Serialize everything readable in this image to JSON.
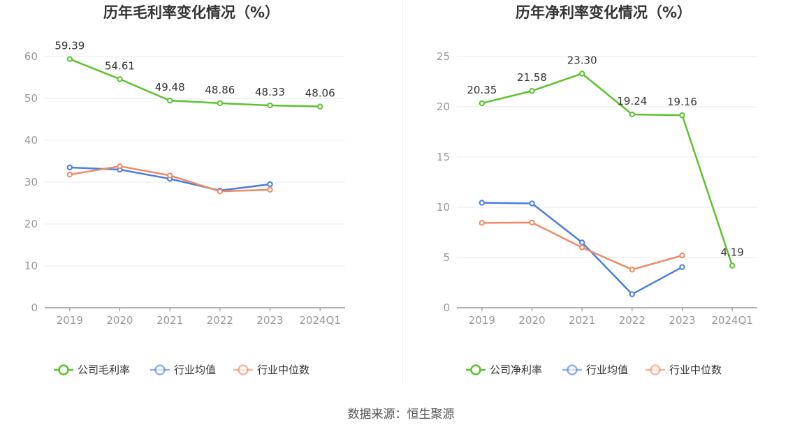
{
  "colors": {
    "company": "#5bc22e",
    "avg": "#4a7ee0",
    "median": "#f08a64",
    "grid": "#e6e9f2",
    "axis_text": "#999999",
    "label_text": "#333333",
    "title_text": "#333333"
  },
  "source": "数据来源：恒生聚源",
  "chart_data": [
    {
      "type": "line",
      "title": "历年毛利率变化情况（%）",
      "categories": [
        "2019",
        "2020",
        "2021",
        "2022",
        "2023",
        "2024Q1"
      ],
      "ylim": [
        0,
        60
      ],
      "yticks": [
        0,
        10,
        20,
        30,
        40,
        50,
        60
      ],
      "grid": true,
      "legend_position": "bottom",
      "series": [
        {
          "name": "公司毛利率",
          "role": "company",
          "labels": true,
          "values": [
            59.39,
            54.61,
            49.48,
            48.86,
            48.33,
            48.06
          ]
        },
        {
          "name": "行业均值",
          "role": "avg",
          "labels": false,
          "values": [
            33.5,
            33.0,
            30.8,
            28.0,
            29.5,
            null
          ]
        },
        {
          "name": "行业中位数",
          "role": "median",
          "labels": false,
          "values": [
            31.8,
            33.8,
            31.6,
            27.8,
            28.2,
            null
          ]
        }
      ],
      "data_labels": [
        "59.39",
        "54.61",
        "49.48",
        "48.86",
        "48.33",
        "48.06"
      ]
    },
    {
      "type": "line",
      "title": "历年净利率变化情况（%）",
      "categories": [
        "2019",
        "2020",
        "2021",
        "2022",
        "2023",
        "2024Q1"
      ],
      "ylim": [
        0,
        25
      ],
      "yticks": [
        0,
        5,
        10,
        15,
        20,
        25
      ],
      "grid": true,
      "legend_position": "bottom",
      "series": [
        {
          "name": "公司净利率",
          "role": "company",
          "labels": true,
          "values": [
            20.35,
            21.58,
            23.3,
            19.24,
            19.16,
            4.19
          ]
        },
        {
          "name": "行业均值",
          "role": "avg",
          "labels": false,
          "values": [
            10.45,
            10.38,
            6.5,
            1.35,
            4.05,
            null
          ]
        },
        {
          "name": "行业中位数",
          "role": "median",
          "labels": false,
          "values": [
            8.45,
            8.48,
            6.0,
            3.8,
            5.2,
            null
          ]
        }
      ],
      "data_labels": [
        "20.35",
        "21.58",
        "23.30",
        "19.24",
        "19.16",
        "4.19"
      ]
    }
  ]
}
